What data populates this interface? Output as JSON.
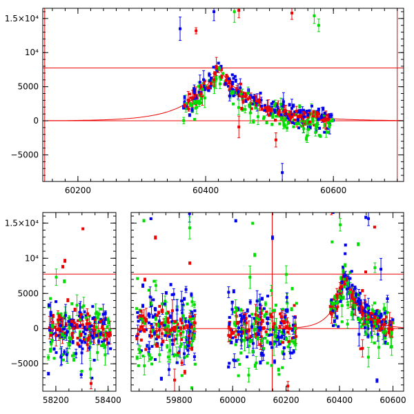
{
  "colors": {
    "blue": "#0000ee",
    "green": "#00dd00",
    "red": "#ee0000",
    "axis": "#000000",
    "background": "#ffffff"
  },
  "chart_data": [
    {
      "type": "scatter",
      "title": "",
      "xlabel": "",
      "ylabel": "",
      "xlim": [
        60145,
        60710
      ],
      "ylim": [
        -8900,
        16500
      ],
      "x_ticks": [
        60200,
        60400,
        60600
      ],
      "x_tick_labels": [
        "60200",
        "60400",
        "60600"
      ],
      "y_ticks": [
        -5000,
        0,
        5000,
        10000,
        15000
      ],
      "y_tick_labels": [
        "−5000",
        "0",
        "5000",
        "10⁴",
        "1.5×10⁴"
      ],
      "series_colors": [
        "blue",
        "green",
        "red"
      ],
      "error_bars": true,
      "reference_lines": {
        "horizontal": [
          0,
          7750
        ],
        "vertical": [
          60148,
          60700
        ],
        "color": "red"
      },
      "model_curve": {
        "color": "red",
        "description": "smooth peaked curve",
        "peak_x": 60420,
        "peak_y": 7750,
        "rise_scale_days": 45,
        "decay_scale_days": 55
      },
      "point_ranges": {
        "x_range": [
          60365,
          60600
        ],
        "main_trend": "follows model curve, peak near 60420 at ~8000, declining to ~1000 by 60600",
        "outliers": [
          {
            "x": 60360,
            "y": 13500,
            "color": "blue"
          },
          {
            "x": 60413,
            "y": 16000,
            "color": "blue"
          },
          {
            "x": 60385,
            "y": 13200,
            "color": "red"
          },
          {
            "x": 60445,
            "y": 16000,
            "color": "green"
          },
          {
            "x": 60452,
            "y": 16200,
            "color": "red"
          },
          {
            "x": 60535,
            "y": 15800,
            "color": "red"
          },
          {
            "x": 60570,
            "y": 15400,
            "color": "green"
          },
          {
            "x": 60577,
            "y": 14000,
            "color": "green"
          },
          {
            "x": 60452,
            "y": -900,
            "color": "red"
          },
          {
            "x": 60510,
            "y": -2800,
            "color": "red"
          },
          {
            "x": 60520,
            "y": -7600,
            "color": "blue"
          },
          {
            "x": 60572,
            "y": -1700,
            "color": "green"
          }
        ]
      }
    },
    {
      "type": "scatter",
      "title": "",
      "xlabel": "",
      "ylabel": "",
      "segments": [
        {
          "xlim": [
            58150,
            58430
          ],
          "x_ticks": [
            58200,
            58400
          ],
          "x_tick_labels": [
            "58200",
            "58400"
          ]
        },
        {
          "xlim": [
            59620,
            60640
          ],
          "x_ticks": [
            59800,
            60000,
            60200,
            60400,
            60600
          ],
          "x_tick_labels": [
            "59800",
            "60000",
            "60200",
            "60400",
            "60600"
          ]
        }
      ],
      "ylim": [
        -8900,
        16500
      ],
      "y_ticks": [
        -5000,
        0,
        5000,
        10000,
        15000
      ],
      "y_tick_labels": [
        "−5000",
        "0",
        "5000",
        "10⁴",
        "1.5×10⁴"
      ],
      "series_colors": [
        "blue",
        "green",
        "red"
      ],
      "error_bars": true,
      "reference_lines": {
        "horizontal": [
          0,
          7750
        ],
        "vertical": [
          60148
        ],
        "color": "red"
      },
      "model_curve": {
        "color": "red",
        "description": "same peaked curve",
        "peak_x": 60420,
        "peak_y": 7750,
        "rise_scale_days": 45,
        "decay_scale_days": 55
      },
      "point_clusters": [
        {
          "x_range": [
            58170,
            58410
          ],
          "y_center": 0,
          "y_spread": 2500
        },
        {
          "x_range": [
            59640,
            59860
          ],
          "y_center": 0,
          "y_spread": 3000
        },
        {
          "x_range": [
            59980,
            60240
          ],
          "y_center": 0,
          "y_spread": 2800
        },
        {
          "x_range": [
            60365,
            60600
          ],
          "y_center": "follows model curve",
          "y_spread": 1500
        }
      ]
    }
  ]
}
